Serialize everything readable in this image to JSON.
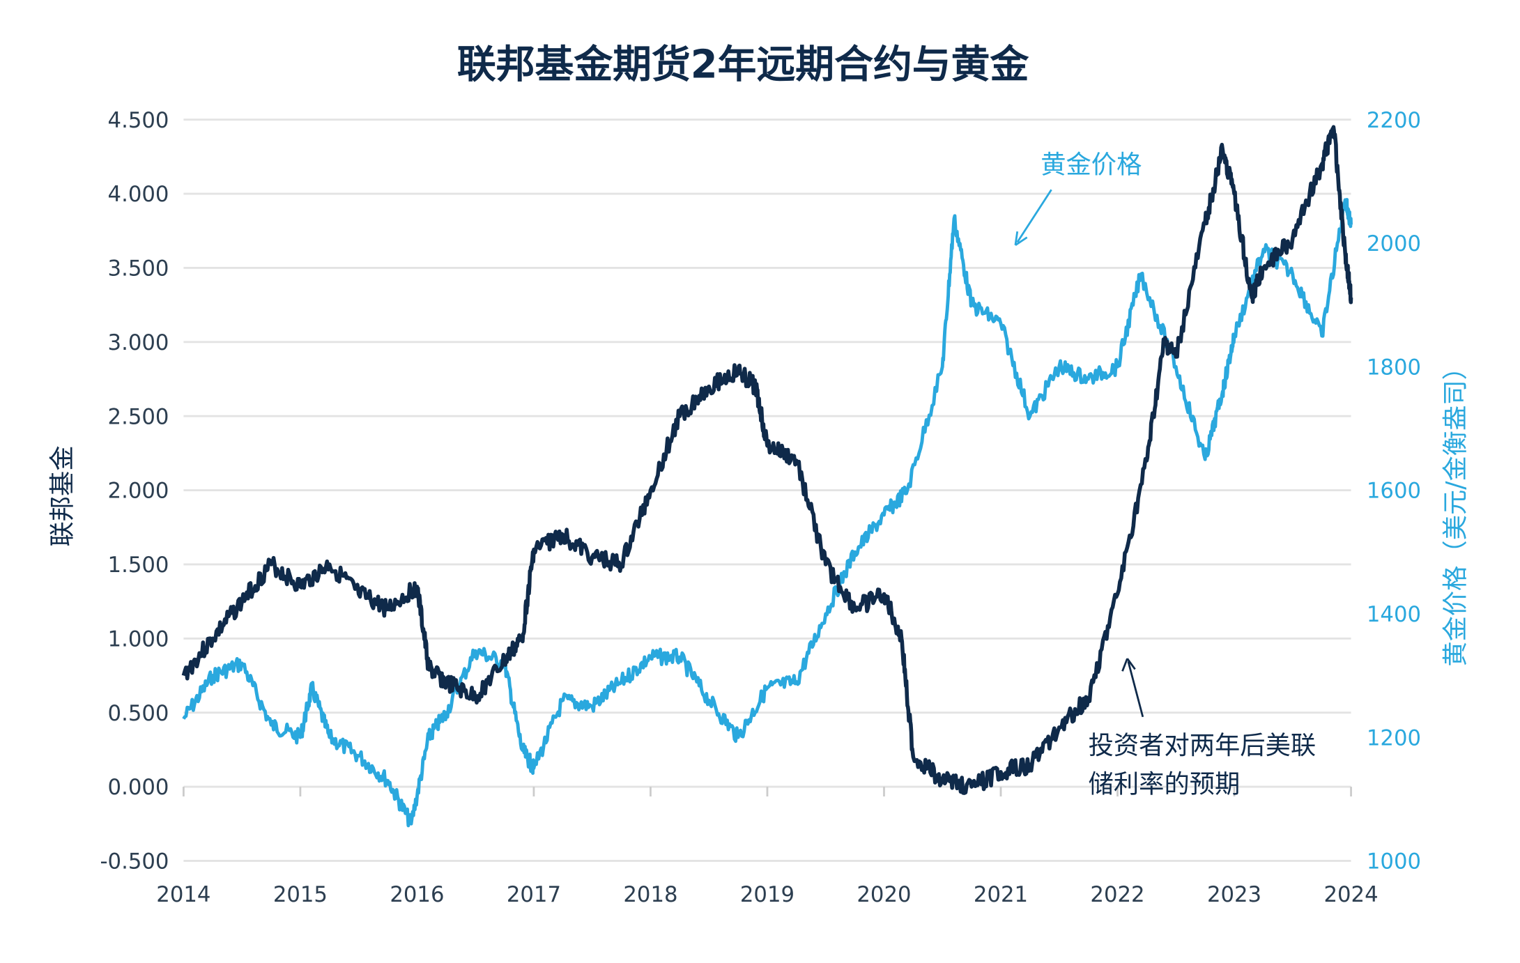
{
  "chart_data": {
    "type": "line",
    "title": "联邦基金期货2年远期合约与黄金",
    "ylabel_left": "联邦基金",
    "ylabel_right": "黄金价格（美元/金衡盎司）",
    "xlim": [
      2014,
      2024
    ],
    "ylim_left": [
      -0.5,
      4.5
    ],
    "ylim_right": [
      1000,
      2200
    ],
    "x_ticks": [
      "2014",
      "2015",
      "2016",
      "2017",
      "2018",
      "2019",
      "2020",
      "2021",
      "2022",
      "2023",
      "2024"
    ],
    "y_left_ticks": [
      "4.500",
      "4.000",
      "3.500",
      "3.000",
      "2.500",
      "2.000",
      "1.500",
      "1.000",
      "0.500",
      "0.000",
      "-0.500"
    ],
    "y_right_ticks": [
      "2200",
      "2000",
      "1800",
      "1600",
      "1400",
      "1200",
      "1000"
    ],
    "grid": true,
    "colors": {
      "fed": "#0f2a4a",
      "gold": "#2aa8de",
      "title": "#0f2a4a"
    },
    "annotations": {
      "gold": "黄金价格",
      "fed_line1": "投资者对两年后美联",
      "fed_line2": "储利率的预期"
    },
    "series": [
      {
        "axis": "left",
        "x": [
          2014.0,
          2014.25,
          2014.5,
          2014.75,
          2015.0,
          2015.25,
          2015.5,
          2015.75,
          2016.0,
          2016.1,
          2016.25,
          2016.5,
          2016.75,
          2016.9,
          2017.0,
          2017.25,
          2017.5,
          2017.75,
          2018.0,
          2018.25,
          2018.5,
          2018.75,
          2018.9,
          2019.0,
          2019.25,
          2019.5,
          2019.75,
          2020.0,
          2020.15,
          2020.25,
          2020.5,
          2020.75,
          2021.0,
          2021.25,
          2021.5,
          2021.75,
          2022.0,
          2022.25,
          2022.4,
          2022.5,
          2022.75,
          2022.9,
          2023.0,
          2023.15,
          2023.25,
          2023.5,
          2023.75,
          2023.85,
          2023.95,
          2024.0
        ],
        "y": [
          0.75,
          1.0,
          1.25,
          1.5,
          1.35,
          1.5,
          1.3,
          1.2,
          1.35,
          0.8,
          0.7,
          0.6,
          0.85,
          1.0,
          1.6,
          1.7,
          1.55,
          1.5,
          2.0,
          2.5,
          2.7,
          2.8,
          2.7,
          2.3,
          2.2,
          1.5,
          1.2,
          1.3,
          1.0,
          0.2,
          0.05,
          0.0,
          0.1,
          0.15,
          0.4,
          0.6,
          1.3,
          2.2,
          3.0,
          2.9,
          3.8,
          4.3,
          4.0,
          3.3,
          3.5,
          3.7,
          4.2,
          4.45,
          3.6,
          3.3
        ]
      },
      {
        "axis": "right",
        "x": [
          2014.0,
          2014.25,
          2014.5,
          2014.75,
          2015.0,
          2015.1,
          2015.25,
          2015.5,
          2015.75,
          2015.95,
          2016.1,
          2016.25,
          2016.5,
          2016.75,
          2016.9,
          2017.0,
          2017.25,
          2017.5,
          2017.75,
          2018.0,
          2018.25,
          2018.5,
          2018.75,
          2019.0,
          2019.25,
          2019.5,
          2019.75,
          2020.0,
          2020.2,
          2020.5,
          2020.6,
          2020.75,
          2021.0,
          2021.25,
          2021.5,
          2021.75,
          2022.0,
          2022.2,
          2022.5,
          2022.75,
          2022.9,
          2023.0,
          2023.25,
          2023.5,
          2023.75,
          2023.95,
          2024.0
        ],
        "y": [
          1230,
          1300,
          1320,
          1220,
          1200,
          1280,
          1200,
          1170,
          1130,
          1060,
          1200,
          1240,
          1340,
          1320,
          1180,
          1150,
          1260,
          1250,
          1290,
          1330,
          1330,
          1260,
          1200,
          1280,
          1290,
          1400,
          1500,
          1560,
          1600,
          1800,
          2040,
          1900,
          1870,
          1720,
          1800,
          1780,
          1800,
          1950,
          1800,
          1650,
          1760,
          1850,
          1990,
          1950,
          1850,
          2070,
          2030
        ]
      }
    ]
  }
}
